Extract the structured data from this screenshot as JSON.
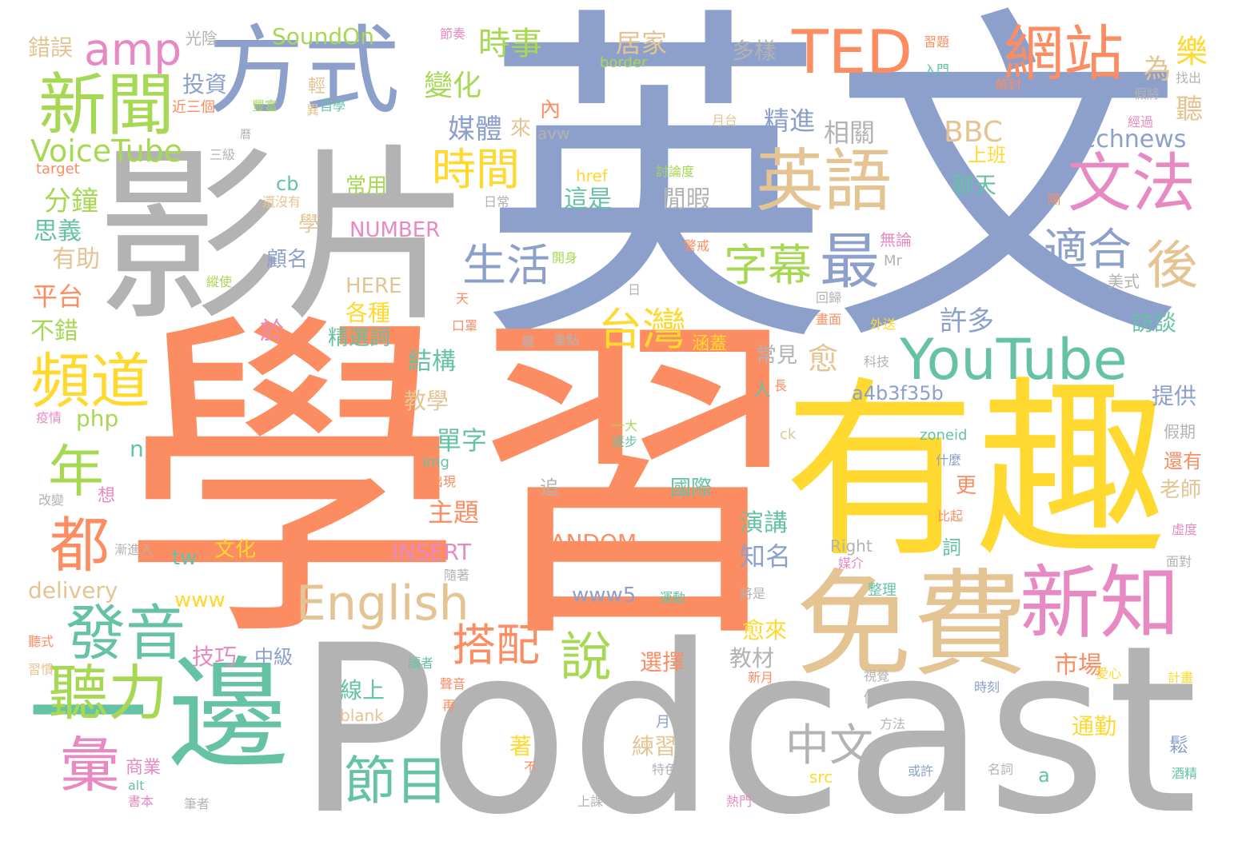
{
  "colors": {
    "blue": "#8da0cb",
    "orange": "#fc8d62",
    "yellow": "#ffd92f",
    "gray": "#b3b3b3",
    "tan": "#e5c494",
    "teal": "#66c2a5",
    "pink": "#e78ac3",
    "green": "#a6d854"
  },
  "words": {
    "yingwen": "英文",
    "xuexi": "學習",
    "podcast": "Podcast",
    "youqu": "有趣",
    "yingpian": "影片",
    "mianfei": "免費",
    "yibian_yi": "一",
    "yibian_bian": "邊",
    "fangshi": "方式",
    "xinwen": "新聞",
    "ted": "TED",
    "wangzhan": "網站",
    "yingyu": "英語",
    "wenfa": "文法",
    "youtube": "YouTube",
    "xinzhi": "新知",
    "english": "English",
    "pindao": "頻道",
    "fayin": "發音",
    "tingli": "聽力",
    "hui": "彙",
    "zimu": "字幕",
    "zui": "最",
    "shijian": "時間",
    "shenghuo": "生活",
    "shihe": "適合",
    "hou": "後",
    "taiwan": "台灣",
    "dapei": "搭配",
    "shuo": "說",
    "jiemu": "節目",
    "zhongwen": "中文",
    "nian": "年",
    "dou": "都",
    "amp": "amp",
    "voicetube": "VoiceTube",
    "shishi": "時事",
    "bianhua": "變化",
    "meiti": "媒體",
    "touzi": "投資",
    "soundon": "SoundOn",
    "bbc": "BBC",
    "technews": "technews",
    "jujia": "居家",
    "duoyang": "多樣",
    "jingjin": "精進",
    "xiangguan": "相關",
    "le": "樂",
    "wei": "為",
    "ting": "聽",
    "fenzhong": "分鐘",
    "sike": "思義",
    "youzhu": "有助",
    "pingtai": "平台",
    "bucuo": "不錯",
    "cuowu": "錯誤",
    "guangyin": "光陰",
    "php": "php",
    "n": "n",
    "changyong": "常用",
    "xue": "學",
    "guming": "顧名",
    "number": "NUMBER",
    "here": "HERE",
    "gezhong": "各種",
    "jingxuanci": "精選詞",
    "yu": "於",
    "xuduo": "許多",
    "fangtan": "訪談",
    "yu2": "愈",
    "jiegou": "結構",
    "jiaoxue": "教學",
    "danzi": "單字",
    "a4b3": "a4b3f35b",
    "tigong": "提供",
    "changjian": "常見",
    "zhuti": "主題",
    "guoji": "國際",
    "yanjiang": "演講",
    "zhiming": "知名",
    "random": "RANDOM",
    "insert": "INSERT",
    "www5": "www5",
    "www": "www",
    "tw": "tw",
    "wenhua": "文化",
    "delivery": "delivery",
    "jiqiao": "技巧",
    "zhongji": "中級",
    "xuanze": "選擇",
    "jiaocai": "教材",
    "yulai": "愈來",
    "xianshang": "線上",
    "shichang": "市場",
    "lianxi": "練習",
    "tongqin": "通勤",
    "zhe": "著",
    "shangye": "商業",
    "a": "a",
    "src": "src",
    "zhui": "追",
    "geng": "更",
    "laoshi": "老師",
    "haiyou": "還有",
    "jiaqi": "假期",
    "shangban": "上班",
    "liaotian": "聊天",
    "zheshi": "這是",
    "xianxia": "閒暇",
    "huxiang": "湖向",
    "cb": "cb",
    "href": "href",
    "border": "border",
    "jiezou": "節奏",
    "qing": "輕",
    "fengfu": "豐富",
    "zixue": "自學",
    "jinsange": "近三個",
    "target": "target",
    "sanji": "三級",
    "rumen": "入門",
    "xiti": "習題",
    "jiefeng": "解封",
    "yuetai": "月台",
    "haimeiyou": "還沒有",
    "richang": "日常",
    "taolundu": "討論度",
    "wulun": "無論",
    "jingjie": "警戒",
    "mr": "Mr",
    "meishi": "美式",
    "huigui": "回歸",
    "huamian": "畫面",
    "kaishen": "開身",
    "zongshi": "縱使",
    "ri": "日",
    "tian": "天",
    "kouzhao": "口罩",
    "waisong": "外送",
    "nong": "農",
    "zhongdian": "重點",
    "hangai": "涵蓋",
    "keji": "科技",
    "chang": "長",
    "ren": "人",
    "yiqing": "疫情",
    "yida": "一大",
    "zhubu": "逐步",
    "img": "img",
    "chuxian": "出現",
    "ck": "ck",
    "zoneid": "zoneid",
    "shenme": "什麼",
    "xiang": "想",
    "gaibian": "改變",
    "xuqiu": "需求",
    "jiejinru": "漸進入",
    "suizhe": "隨著",
    "right": "Right",
    "meijie": "媒介",
    "zhengli": "整理",
    "yundong": "運動",
    "jiangshi": "將是",
    "bijiao": "比起",
    "ci": "詞",
    "xudu": "虛度",
    "miandui": "面對",
    "tingshi": "聽式",
    "xiguan": "習慣",
    "duzhe": "讀者",
    "shengyin": "聲音",
    "zai": "再",
    "xinyue": "新月",
    "shijue": "視覺",
    "ailxin": "愛心",
    "jihua": "計畫",
    "shike": "時刻",
    "blank": "blank",
    "reng": "仍",
    "fangfa": "方法",
    "yue": "月",
    "tese": "特色",
    "huoxu": "或許",
    "mingci": "名詞",
    "jiujing": "酒精",
    "song": "鬆",
    "alt": "alt",
    "shuben": "書本",
    "bizhe": "筆者",
    "shangke": "上課",
    "remen": "熱門",
    "bu": "不",
    "jiaruo": "假將",
    "zhaochu": "找出",
    "jingguo": "經過",
    "ge": "隔",
    "nei": "內",
    "lai": "來",
    "avw": "avw",
    "li": "曆",
    "yi": "異"
  }
}
